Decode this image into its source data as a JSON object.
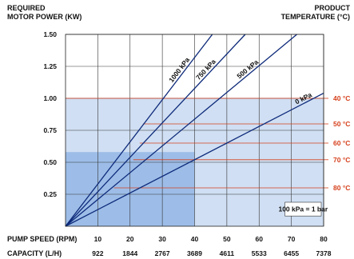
{
  "chart_data": {
    "type": "line",
    "title_left": [
      "REQUIRED",
      "MOTOR POWER (KW)"
    ],
    "title_right": [
      "PRODUCT",
      "TEMPERATURE (°C)"
    ],
    "x_axis": {
      "label": "PUMP SPEED (RPM)",
      "min": 0,
      "max": 80,
      "ticks": [
        10,
        20,
        30,
        40,
        50,
        60,
        70,
        80
      ],
      "tick_labels": [
        "10",
        "20",
        "30",
        "40",
        "50",
        "60",
        "70",
        "80"
      ]
    },
    "capacity_axis": {
      "label": "CAPACITY (L/H)",
      "tick_labels": [
        "922",
        "1844",
        "2767",
        "3689",
        "4611",
        "5533",
        "6455",
        "7378"
      ]
    },
    "y_axis": {
      "min": 0,
      "max": 1.5,
      "ticks": [
        0.25,
        0.5,
        0.75,
        1.0,
        1.25,
        1.5
      ],
      "tick_labels": [
        "0.25",
        "0.50",
        "0.75",
        "1.00",
        "1.25",
        "1.50"
      ]
    },
    "series": [
      {
        "name": "1000 kPa",
        "x": [
          0,
          45.5
        ],
        "y": [
          0,
          1.5
        ]
      },
      {
        "name": "750 kPa",
        "x": [
          0,
          55.7
        ],
        "y": [
          0,
          1.5
        ]
      },
      {
        "name": "500 kPa",
        "x": [
          0,
          71.7
        ],
        "y": [
          0,
          1.5
        ]
      },
      {
        "name": "0 kPa",
        "x": [
          0,
          80
        ],
        "y": [
          0,
          1.04
        ]
      }
    ],
    "temperature_lines": [
      {
        "label": "40 °C",
        "y": 1.0,
        "x_start": 0
      },
      {
        "label": "50 °C",
        "y": 0.8,
        "x_start": 24
      },
      {
        "label": "60 °C",
        "y": 0.65,
        "x_start": 23
      },
      {
        "label": "70 °C",
        "y": 0.52,
        "x_start": 21
      },
      {
        "label": "80 °C",
        "y": 0.3,
        "x_start": 15
      }
    ],
    "shaded_regions": [
      {
        "x": [
          0,
          80
        ],
        "y": [
          0,
          1.0
        ],
        "color": "#d0dff3"
      },
      {
        "x": [
          0,
          40
        ],
        "y": [
          0,
          0.58
        ],
        "color": "#9dbde8"
      }
    ],
    "legend_note": "100 kPa = 1 bar",
    "grid": true
  }
}
